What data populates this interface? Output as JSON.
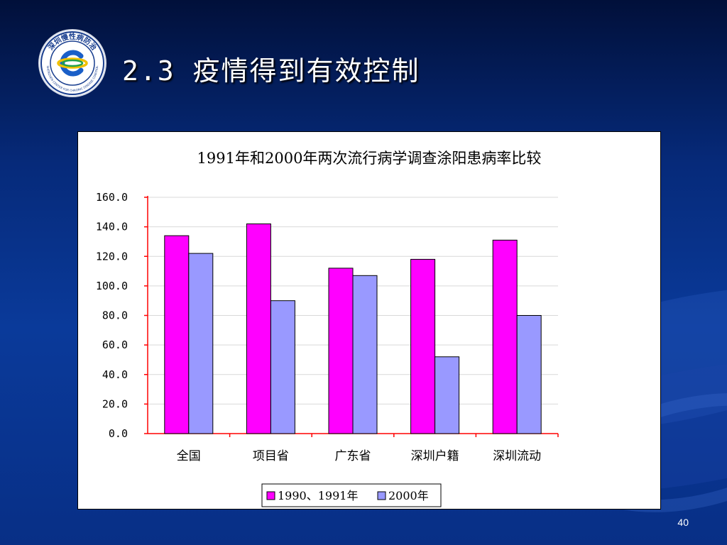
{
  "slide": {
    "title": "2.3 疫情得到有效控制",
    "page_number": "40",
    "logo": {
      "text_top": "深圳慢性病防治",
      "text_bottom": "SHENZHEN CENTER FOR CHRONIC DISEASE CONTROL"
    }
  },
  "colors": {
    "series_1990": "#ff00ff",
    "series_2000": "#9999ff",
    "axis": "#ff0000",
    "grid": "#d9d9d9"
  },
  "chart_data": {
    "type": "bar",
    "title": "1991年和2000年两次流行病学调查涂阳患病率比较",
    "categories": [
      "全国",
      "项目省",
      "广东省",
      "深圳户籍",
      "深圳流动"
    ],
    "series": [
      {
        "name": "1990、1991年",
        "values": [
          134.0,
          142.0,
          112.0,
          118.0,
          131.0
        ]
      },
      {
        "name": "2000年",
        "values": [
          122.0,
          90.0,
          107.0,
          52.0,
          80.0
        ]
      }
    ],
    "ylim": [
      0,
      160
    ],
    "yticks": [
      "0.0",
      "20.0",
      "40.0",
      "60.0",
      "80.0",
      "100.0",
      "120.0",
      "140.0",
      "160.0"
    ],
    "grid": true,
    "legend_position": "bottom"
  }
}
